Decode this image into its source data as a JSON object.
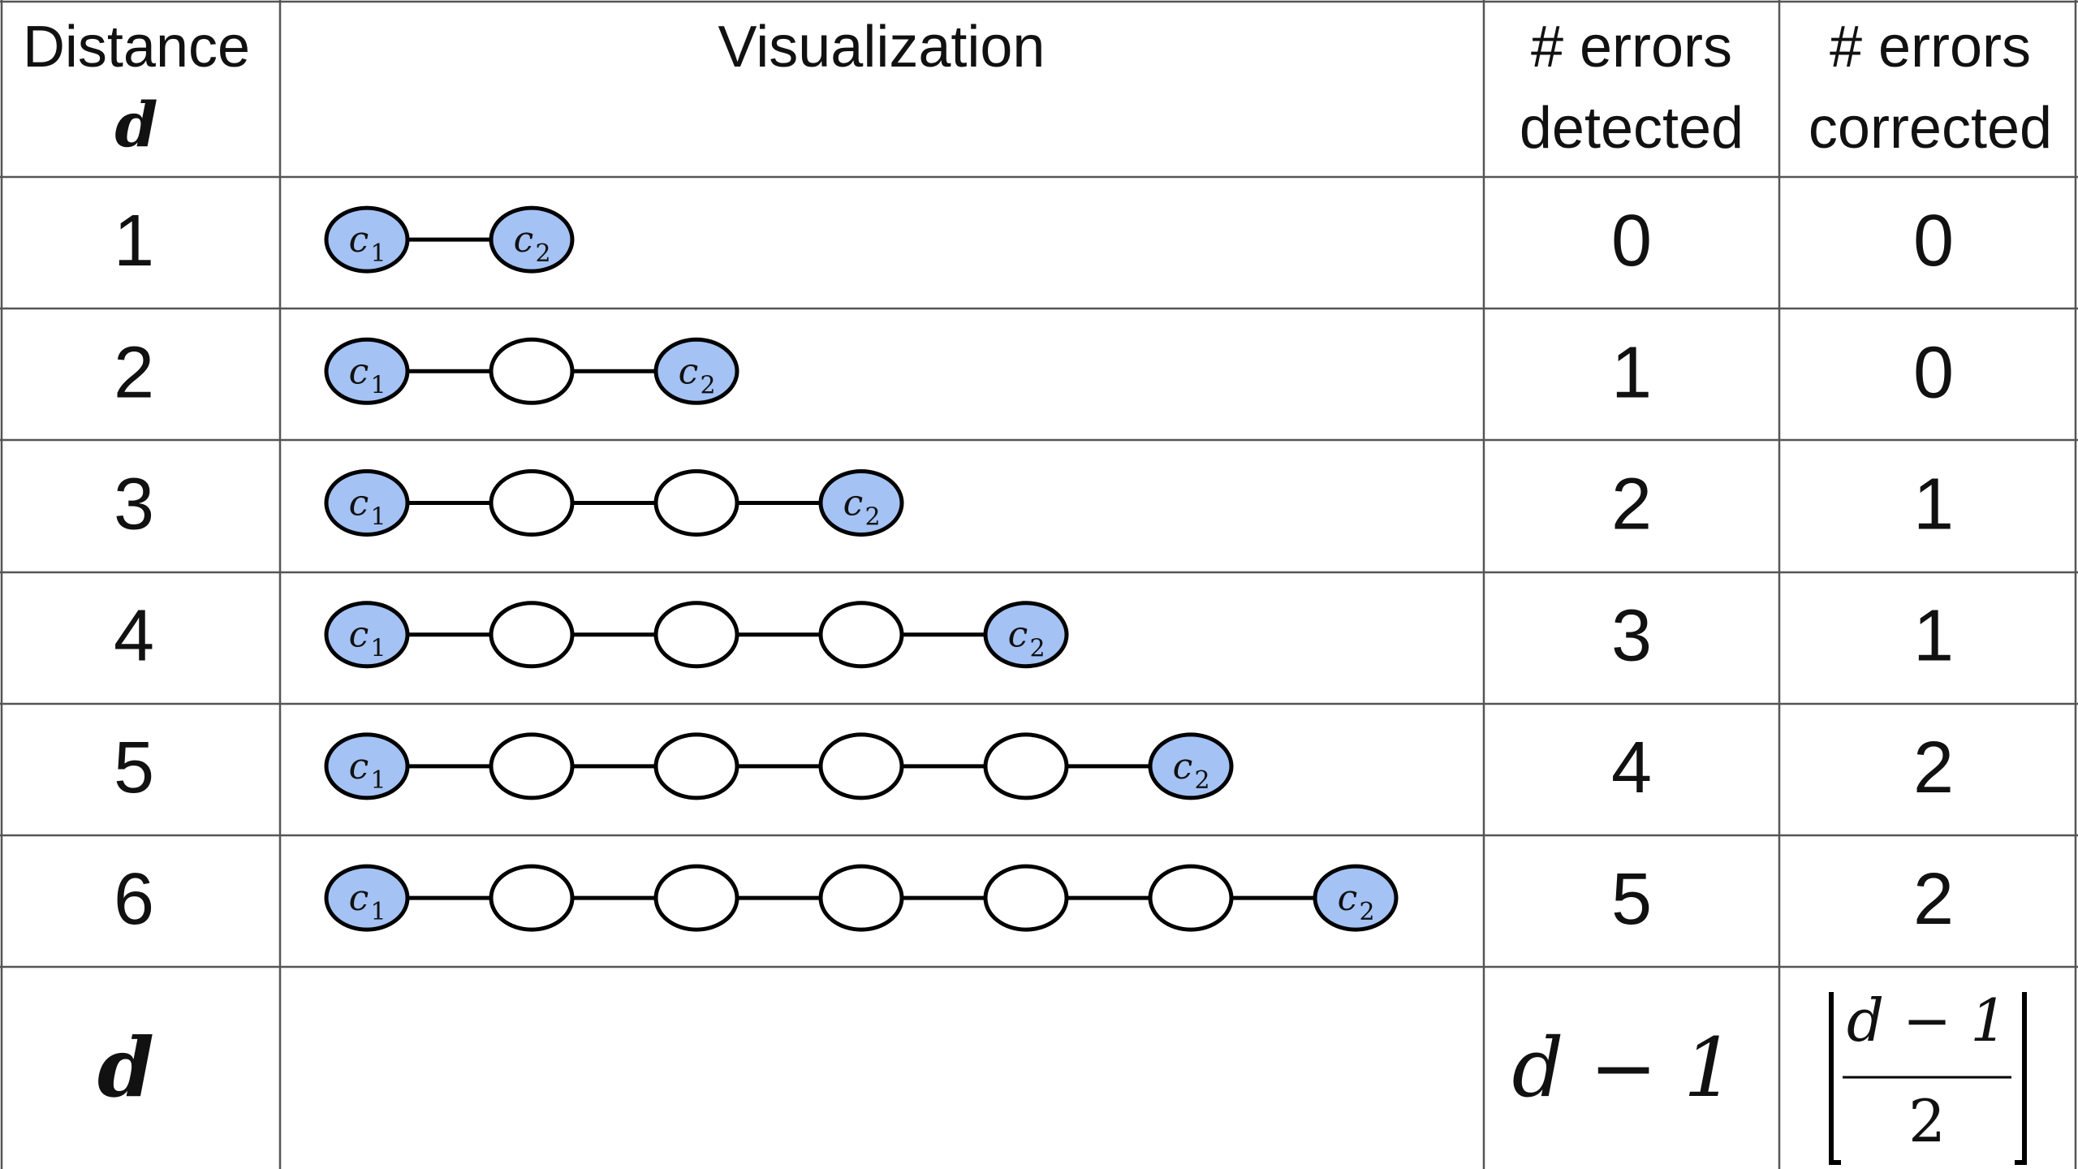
{
  "header": {
    "distance_line1": "Distance",
    "distance_line2": "d",
    "visualization": "Visualization",
    "detected_line1": "# errors",
    "detected_line2": "detected",
    "corrected_line1": "# errors",
    "corrected_line2": "corrected"
  },
  "rows": [
    {
      "d": "1",
      "detected": "0",
      "corrected": "0",
      "intermediate_nodes": 0
    },
    {
      "d": "2",
      "detected": "1",
      "corrected": "0",
      "intermediate_nodes": 1
    },
    {
      "d": "3",
      "detected": "2",
      "corrected": "1",
      "intermediate_nodes": 2
    },
    {
      "d": "4",
      "detected": "3",
      "corrected": "1",
      "intermediate_nodes": 3
    },
    {
      "d": "5",
      "detected": "4",
      "corrected": "2",
      "intermediate_nodes": 4
    },
    {
      "d": "6",
      "detected": "5",
      "corrected": "2",
      "intermediate_nodes": 5
    }
  ],
  "node_labels": {
    "start": "c",
    "start_sub": "1",
    "end": "c",
    "end_sub": "2"
  },
  "general_row": {
    "d": "d",
    "detected": "d − 1",
    "corrected_numerator": "d − 1",
    "corrected_denominator": "2"
  },
  "colors": {
    "codeword_fill": "#a4c2f4",
    "grid": "#555555",
    "stroke": "#000000"
  }
}
